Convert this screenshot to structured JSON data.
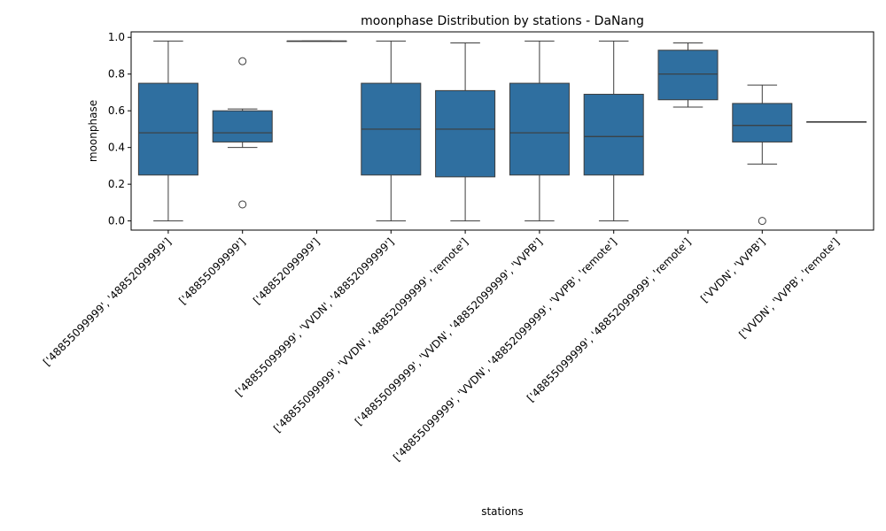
{
  "chart_data": {
    "type": "box",
    "title": "moonphase Distribution by stations - DaNang",
    "xlabel": "stations",
    "ylabel": "moonphase",
    "ylim": [
      -0.05,
      1.03
    ],
    "yticks": [
      "0.0",
      "0.2",
      "0.4",
      "0.6",
      "0.8",
      "1.0"
    ],
    "ytick_values": [
      0.0,
      0.2,
      0.4,
      0.6,
      0.8,
      1.0
    ],
    "box_color": "#2f6fa0",
    "line_color": "#3d3d3d",
    "grid": false,
    "categories": [
      "['48855099999', '48852099999']",
      "['48855099999']",
      "['48852099999']",
      "['48855099999', 'VVDN', '48852099999']",
      "['48855099999', 'VVDN', '48852099999', 'remote']",
      "['48855099999', 'VVDN', '48852099999', 'VVPB']",
      "['48855099999', 'VVDN', '48852099999', 'VVPB', 'remote']",
      "['48855099999', '48852099999', 'remote']",
      "['VVDN', 'VVPB']",
      "['VVDN', 'VVPB', 'remote']"
    ],
    "boxes": [
      {
        "whisker_low": 0.0,
        "q1": 0.25,
        "median": 0.48,
        "q3": 0.75,
        "whisker_high": 0.98,
        "outliers": []
      },
      {
        "whisker_low": 0.4,
        "q1": 0.43,
        "median": 0.48,
        "q3": 0.6,
        "whisker_high": 0.61,
        "outliers": [
          0.87,
          0.09
        ]
      },
      {
        "whisker_low": 0.98,
        "q1": 0.98,
        "median": 0.98,
        "q3": 0.98,
        "whisker_high": 0.98,
        "outliers": []
      },
      {
        "whisker_low": 0.0,
        "q1": 0.25,
        "median": 0.5,
        "q3": 0.75,
        "whisker_high": 0.98,
        "outliers": []
      },
      {
        "whisker_low": 0.0,
        "q1": 0.24,
        "median": 0.5,
        "q3": 0.71,
        "whisker_high": 0.97,
        "outliers": []
      },
      {
        "whisker_low": 0.0,
        "q1": 0.25,
        "median": 0.48,
        "q3": 0.75,
        "whisker_high": 0.98,
        "outliers": []
      },
      {
        "whisker_low": 0.0,
        "q1": 0.25,
        "median": 0.46,
        "q3": 0.69,
        "whisker_high": 0.98,
        "outliers": []
      },
      {
        "whisker_low": 0.62,
        "q1": 0.66,
        "median": 0.8,
        "q3": 0.93,
        "whisker_high": 0.97,
        "outliers": []
      },
      {
        "whisker_low": 0.31,
        "q1": 0.43,
        "median": 0.52,
        "q3": 0.64,
        "whisker_high": 0.74,
        "outliers": [
          0.0
        ]
      },
      {
        "whisker_low": 0.54,
        "q1": 0.54,
        "median": 0.54,
        "q3": 0.54,
        "whisker_high": 0.54,
        "outliers": []
      }
    ]
  }
}
